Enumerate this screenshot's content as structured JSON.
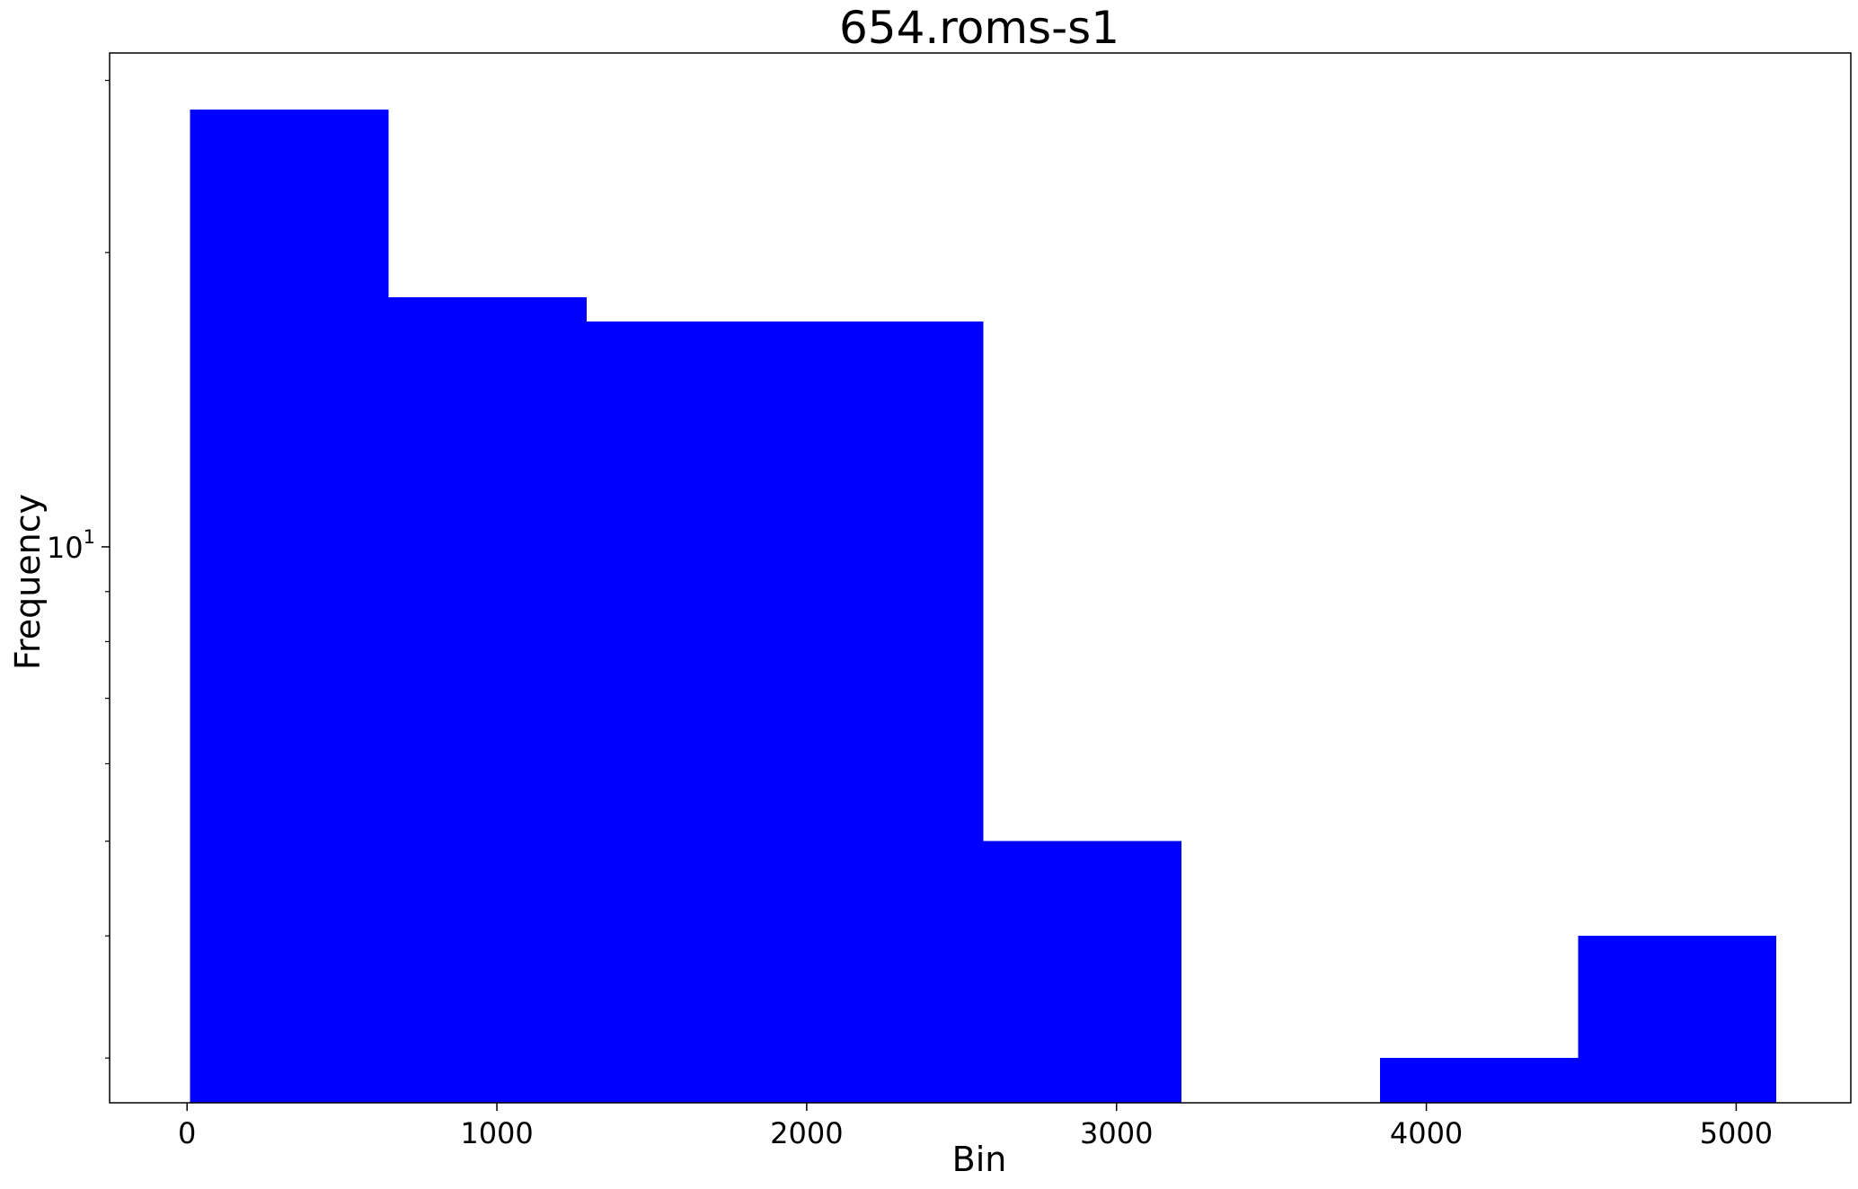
{
  "chart_data": {
    "type": "bar",
    "subtype": "histogram",
    "title": "654.roms-s1",
    "xlabel": "Bin",
    "ylabel": "Frequency",
    "yscale": "log",
    "color": "#0000ff",
    "xlim": [
      -250,
      5370
    ],
    "ylim": [
      2.7,
      32
    ],
    "x_ticks": [
      0,
      1000,
      2000,
      3000,
      4000,
      5000
    ],
    "x_tick_labels": [
      "0",
      "1000",
      "2000",
      "3000",
      "4000",
      "5000"
    ],
    "y_major_ticks": [
      10
    ],
    "y_major_tick_base": "10",
    "y_major_tick_exp": "1",
    "y_minor_ticks": [
      3,
      4,
      5,
      6,
      7,
      8,
      9,
      20,
      30
    ],
    "bins": [
      {
        "x0": 10,
        "x1": 650,
        "value": 28
      },
      {
        "x0": 650,
        "x1": 1290,
        "value": 18
      },
      {
        "x0": 1290,
        "x1": 1930,
        "value": 17
      },
      {
        "x0": 1930,
        "x1": 2570,
        "value": 17
      },
      {
        "x0": 2570,
        "x1": 3210,
        "value": 5
      },
      {
        "x0": 3210,
        "x1": 3850,
        "value": 0
      },
      {
        "x0": 3850,
        "x1": 4490,
        "value": 3
      },
      {
        "x0": 4490,
        "x1": 5130,
        "value": 4
      }
    ],
    "grid": false,
    "legend": "none"
  }
}
